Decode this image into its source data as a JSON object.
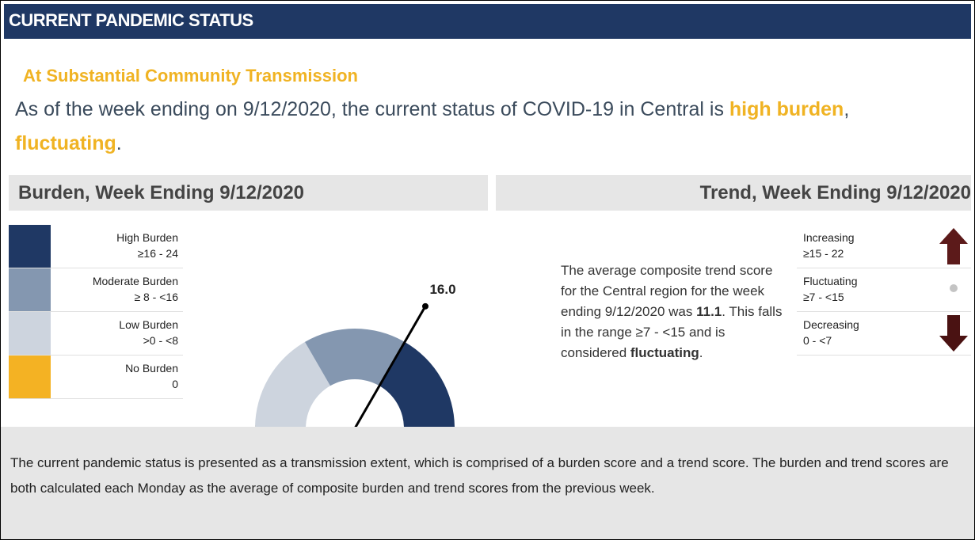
{
  "header": {
    "title": "CURRENT PANDEMIC STATUS"
  },
  "status": {
    "heading": "At Substantial Community Transmission",
    "sentence": [
      "As of the week ending on 9/12/2020, the current status of COVID-19 in Central is ",
      "high burden",
      ", ",
      "fluctuating",
      "."
    ]
  },
  "burden": {
    "title": "Burden, Week Ending 9/12/2020",
    "legend": [
      {
        "name": "High Burden",
        "range": "≥16 - 24",
        "color": "#1f3864"
      },
      {
        "name": "Moderate Burden",
        "range": "≥ 8 - <16",
        "color": "#8497b0"
      },
      {
        "name": "Low Burden",
        "range": ">0 - <8",
        "color": "#cdd4de"
      },
      {
        "name": "No Burden",
        "range": "0",
        "color": "#f4b223"
      }
    ],
    "gauge": {
      "value": 16,
      "value_label": "16.0",
      "min": 0,
      "max": 24,
      "bands": [
        {
          "from": 0,
          "to": 0,
          "color": "#f4b223"
        },
        {
          "from": 0,
          "to": 8,
          "color": "#cdd4de"
        },
        {
          "from": 8,
          "to": 16,
          "color": "#8497b0"
        },
        {
          "from": 16,
          "to": 24,
          "color": "#1f3864"
        }
      ]
    }
  },
  "trend": {
    "title": "Trend, Week Ending 9/12/2020",
    "text": [
      "The average composite trend score for the Central region for the week ending 9/12/2020 was ",
      "11.1",
      ". This falls in the range ≥7 - <15 and is considered ",
      "fluctuating",
      "."
    ],
    "legend": [
      {
        "name": "Increasing",
        "range": "≥15 - 22"
      },
      {
        "name": "Fluctuating",
        "range": "≥7 - <15"
      },
      {
        "name": "Decreasing",
        "range": "0 - <7"
      }
    ]
  },
  "footer": {
    "text": "The current pandemic status is presented as a transmission extent, which is comprised of a burden score and a trend score. The burden and trend scores are both calculated each Monday as the average of composite burden and trend scores from the previous week."
  }
}
